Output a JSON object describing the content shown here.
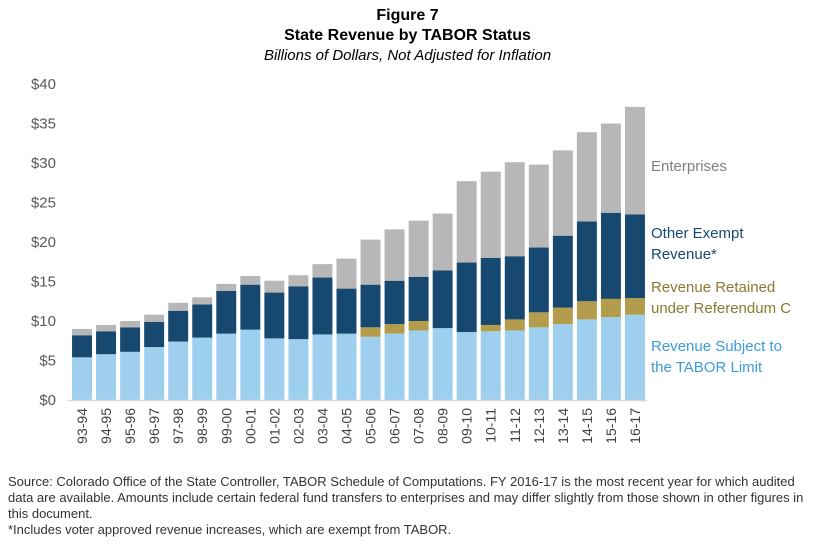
{
  "header": {
    "figure_number": "Figure 7",
    "title": "State Revenue by TABOR Status",
    "subtitle": "Billions of Dollars, Not Adjusted for Inflation"
  },
  "footer": {
    "source": "Source: Colorado Office of the State Controller, TABOR Schedule of Computations. FY 2016-17 is the most recent year for which audited data are available. Amounts include certain federal fund transfers to enterprises and may differ slightly from those shown in other figures in this document.",
    "footnote": "*Includes voter approved revenue increases, which are exempt from TABOR."
  },
  "chart_data": {
    "type": "bar",
    "stacked": true,
    "title": "State Revenue by TABOR Status",
    "subtitle": "Billions of Dollars, Not Adjusted for Inflation",
    "xlabel": "",
    "ylabel": "",
    "ylim": [
      0,
      40
    ],
    "yticks": [
      0,
      5,
      10,
      15,
      20,
      25,
      30,
      35,
      40
    ],
    "ytick_labels": [
      "$0",
      "$5",
      "$10",
      "$15",
      "$20",
      "$25",
      "$30",
      "$35",
      "$40"
    ],
    "grid": false,
    "legend_position": "right",
    "categories": [
      "93-94",
      "94-95",
      "95-96",
      "96-97",
      "97-98",
      "98-99",
      "99-00",
      "00-01",
      "01-02",
      "02-03",
      "03-04",
      "04-05",
      "05-06",
      "06-07",
      "07-08",
      "08-09",
      "09-10",
      "10-11",
      "11-12",
      "12-13",
      "13-14",
      "14-15",
      "15-16",
      "16-17"
    ],
    "series": [
      {
        "name": "Revenue Subject to the TABOR Limit",
        "legend_lines": [
          "Revenue Subject to",
          "the TABOR Limit"
        ],
        "color": "#9fcfef",
        "label_color": "#3d9bd9",
        "values": [
          5.4,
          5.8,
          6.1,
          6.7,
          7.4,
          7.9,
          8.4,
          8.9,
          7.8,
          7.7,
          8.3,
          8.4,
          8.0,
          8.4,
          8.8,
          9.1,
          8.6,
          8.7,
          8.8,
          9.2,
          9.6,
          10.2,
          10.5,
          10.8
        ]
      },
      {
        "name": "Revenue Retained under Referendum C",
        "legend_lines": [
          "Revenue Retained",
          "under Referendum C"
        ],
        "color": "#b39d4d",
        "label_color": "#8c7a32",
        "values": [
          0,
          0,
          0,
          0,
          0,
          0,
          0,
          0,
          0,
          0,
          0,
          0,
          1.2,
          1.2,
          1.2,
          0,
          0,
          0.8,
          1.4,
          1.9,
          2.1,
          2.3,
          2.3,
          2.1
        ]
      },
      {
        "name": "Other Exempt Revenue*",
        "legend_lines": [
          "Other Exempt",
          "Revenue*"
        ],
        "color": "#164870",
        "label_color": "#164870",
        "values": [
          2.8,
          2.9,
          3.1,
          3.2,
          3.9,
          4.2,
          5.4,
          5.7,
          5.8,
          6.7,
          7.2,
          5.7,
          5.4,
          5.5,
          5.6,
          7.3,
          8.8,
          8.5,
          8.0,
          8.2,
          9.1,
          10.1,
          10.9,
          10.6
        ]
      },
      {
        "name": "Enterprises",
        "legend_lines": [
          "Enterprises"
        ],
        "color": "#b7b7b7",
        "label_color": "#7f7f7f",
        "values": [
          0.8,
          0.8,
          0.8,
          0.9,
          1.0,
          0.9,
          0.9,
          1.1,
          1.5,
          1.4,
          1.7,
          3.8,
          5.7,
          6.5,
          7.1,
          7.2,
          10.3,
          10.9,
          11.9,
          10.5,
          10.8,
          11.3,
          11.3,
          13.6
        ]
      }
    ]
  }
}
